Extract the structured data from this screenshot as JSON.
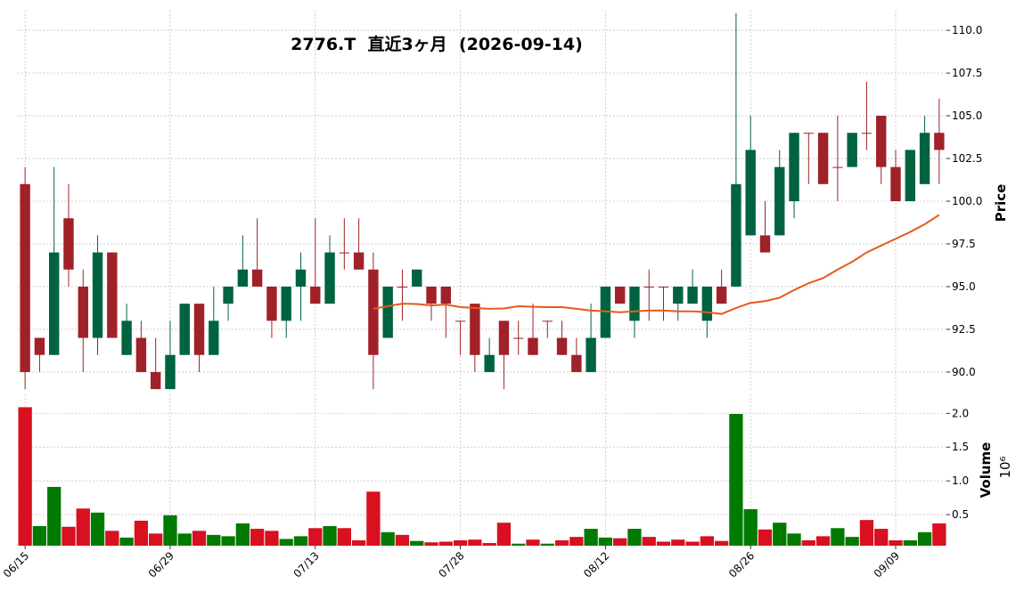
{
  "chart_data": {
    "type": "candlestick",
    "title": "2776.T  直近3ヶ月  (2026-09-14)",
    "categories": [
      "06/15",
      null,
      null,
      null,
      null,
      null,
      null,
      null,
      null,
      null,
      "06/29",
      null,
      null,
      null,
      null,
      null,
      null,
      null,
      null,
      null,
      "07/13",
      null,
      null,
      null,
      null,
      null,
      null,
      null,
      null,
      null,
      "07/28",
      null,
      null,
      null,
      null,
      null,
      null,
      null,
      null,
      null,
      "08/12",
      null,
      null,
      null,
      null,
      null,
      null,
      null,
      null,
      null,
      "08/26",
      null,
      null,
      null,
      null,
      null,
      null,
      null,
      null,
      null,
      "09/09",
      null,
      null,
      null
    ],
    "open": [
      101,
      92,
      91,
      99,
      95,
      92,
      97,
      91,
      92,
      90,
      89,
      91,
      94,
      91,
      94,
      95,
      96,
      95,
      93,
      95,
      95,
      94,
      97,
      97,
      96,
      92,
      95,
      95,
      95,
      95,
      93,
      94,
      90,
      93,
      92,
      92,
      93,
      92,
      91,
      90,
      92,
      95,
      93,
      95,
      95,
      94,
      94,
      93,
      95,
      95,
      98,
      98,
      98,
      100,
      104,
      104,
      102,
      102,
      104,
      105,
      102,
      100,
      101,
      104
    ],
    "high": [
      102,
      92,
      102,
      101,
      96,
      98,
      97,
      94,
      93,
      92,
      93,
      94,
      94,
      95,
      95,
      98,
      99,
      95,
      95,
      97,
      99,
      98,
      99,
      99,
      97,
      95,
      96,
      96,
      95,
      95,
      93,
      94,
      92,
      93,
      93,
      94,
      93,
      93,
      92,
      94,
      95,
      95,
      95,
      96,
      95,
      95,
      96,
      95,
      96,
      111,
      105,
      100,
      103,
      104,
      104,
      104,
      105,
      104,
      107,
      105,
      103,
      103,
      105,
      106
    ],
    "low": [
      89,
      90,
      91,
      95,
      90,
      91,
      92,
      91,
      90,
      89,
      89,
      91,
      90,
      91,
      93,
      95,
      95,
      92,
      92,
      93,
      94,
      94,
      96,
      96,
      89,
      92,
      93,
      95,
      93,
      92,
      91,
      90,
      90,
      89,
      91,
      91,
      92,
      91,
      90,
      90,
      92,
      94,
      92,
      93,
      93,
      93,
      94,
      92,
      94,
      95,
      98,
      97,
      98,
      99,
      101,
      101,
      100,
      102,
      103,
      101,
      100,
      100,
      101,
      101
    ],
    "close": [
      90,
      91,
      97,
      96,
      92,
      97,
      92,
      93,
      90,
      89,
      91,
      94,
      91,
      93,
      95,
      96,
      95,
      93,
      95,
      96,
      94,
      97,
      97,
      96,
      91,
      95,
      95,
      96,
      94,
      94,
      93,
      91,
      91,
      91,
      92,
      91,
      93,
      91,
      90,
      92,
      95,
      94,
      95,
      95,
      95,
      95,
      95,
      95,
      94,
      101,
      103,
      97,
      102,
      104,
      104,
      101,
      102,
      104,
      104,
      102,
      100,
      103,
      104,
      103
    ],
    "up_color": "#006340",
    "down_color": "#a02128",
    "moving_average": {
      "color": "#e8591a",
      "values": [
        null,
        null,
        null,
        null,
        null,
        null,
        null,
        null,
        null,
        null,
        null,
        null,
        null,
        null,
        null,
        null,
        null,
        null,
        null,
        null,
        null,
        null,
        null,
        null,
        93.7,
        93.85,
        94.0,
        93.98,
        93.9,
        93.95,
        93.8,
        93.75,
        93.7,
        93.72,
        93.85,
        93.82,
        93.8,
        93.8,
        93.7,
        93.6,
        93.55,
        93.5,
        93.55,
        93.6,
        93.6,
        93.55,
        93.55,
        93.5,
        93.4,
        93.75,
        94.05,
        94.15,
        94.35,
        94.8,
        95.2,
        95.5,
        96.0,
        96.45,
        97.0,
        97.4,
        97.8,
        98.2,
        98.65,
        99.2
      ]
    },
    "ylabel": "Price",
    "ylim": [
      88.85,
      111.15
    ],
    "yticks": [
      {
        "value": 90,
        "label": "90.0"
      },
      92.5,
      {
        "value": 95,
        "label": "95.0"
      },
      97.5,
      {
        "value": 100,
        "label": "100.0"
      },
      102.5,
      {
        "value": 105,
        "label": "105.0"
      },
      107.5,
      {
        "value": 110,
        "label": "110.0"
      }
    ],
    "volume": [
      2.09,
      0.33,
      0.91,
      0.32,
      0.59,
      0.53,
      0.26,
      0.16,
      0.41,
      0.22,
      0.49,
      0.22,
      0.26,
      0.2,
      0.18,
      0.37,
      0.29,
      0.26,
      0.14,
      0.18,
      0.3,
      0.33,
      0.3,
      0.12,
      0.84,
      0.24,
      0.2,
      0.11,
      0.09,
      0.1,
      0.12,
      0.13,
      0.08,
      0.38,
      0.07,
      0.13,
      0.07,
      0.12,
      0.17,
      0.29,
      0.16,
      0.15,
      0.29,
      0.17,
      0.1,
      0.13,
      0.1,
      0.18,
      0.11,
      1.99,
      0.58,
      0.28,
      0.38,
      0.22,
      0.12,
      0.18,
      0.3,
      0.17,
      0.42,
      0.29,
      0.12,
      0.12,
      0.24,
      0.37
    ],
    "volume_direction": [
      "down",
      "up",
      "up",
      "down",
      "down",
      "up",
      "down",
      "up",
      "down",
      "down",
      "up",
      "up",
      "down",
      "up",
      "up",
      "up",
      "down",
      "down",
      "up",
      "up",
      "down",
      "up",
      "down",
      "down",
      "down",
      "up",
      "down",
      "up",
      "down",
      "down",
      "down",
      "down",
      "down",
      "down",
      "up",
      "down",
      "up",
      "down",
      "down",
      "up",
      "up",
      "down",
      "up",
      "down",
      "down",
      "down",
      "down",
      "down",
      "down",
      "up",
      "up",
      "down",
      "up",
      "up",
      "down",
      "down",
      "up",
      "up",
      "down",
      "down",
      "down",
      "up",
      "up",
      "down"
    ],
    "volume_colors": {
      "up": "#007a00",
      "down": "#d8101f"
    },
    "volume_label": "Volume",
    "volume_multiplier": "10⁶",
    "volume_ylim": [
      0.04,
      2.28
    ],
    "volume_yticks": [
      0.5,
      {
        "value": 1.0,
        "label": "1.0"
      },
      1.5,
      {
        "value": 2.0,
        "label": "2.0"
      }
    ],
    "grid": true
  }
}
